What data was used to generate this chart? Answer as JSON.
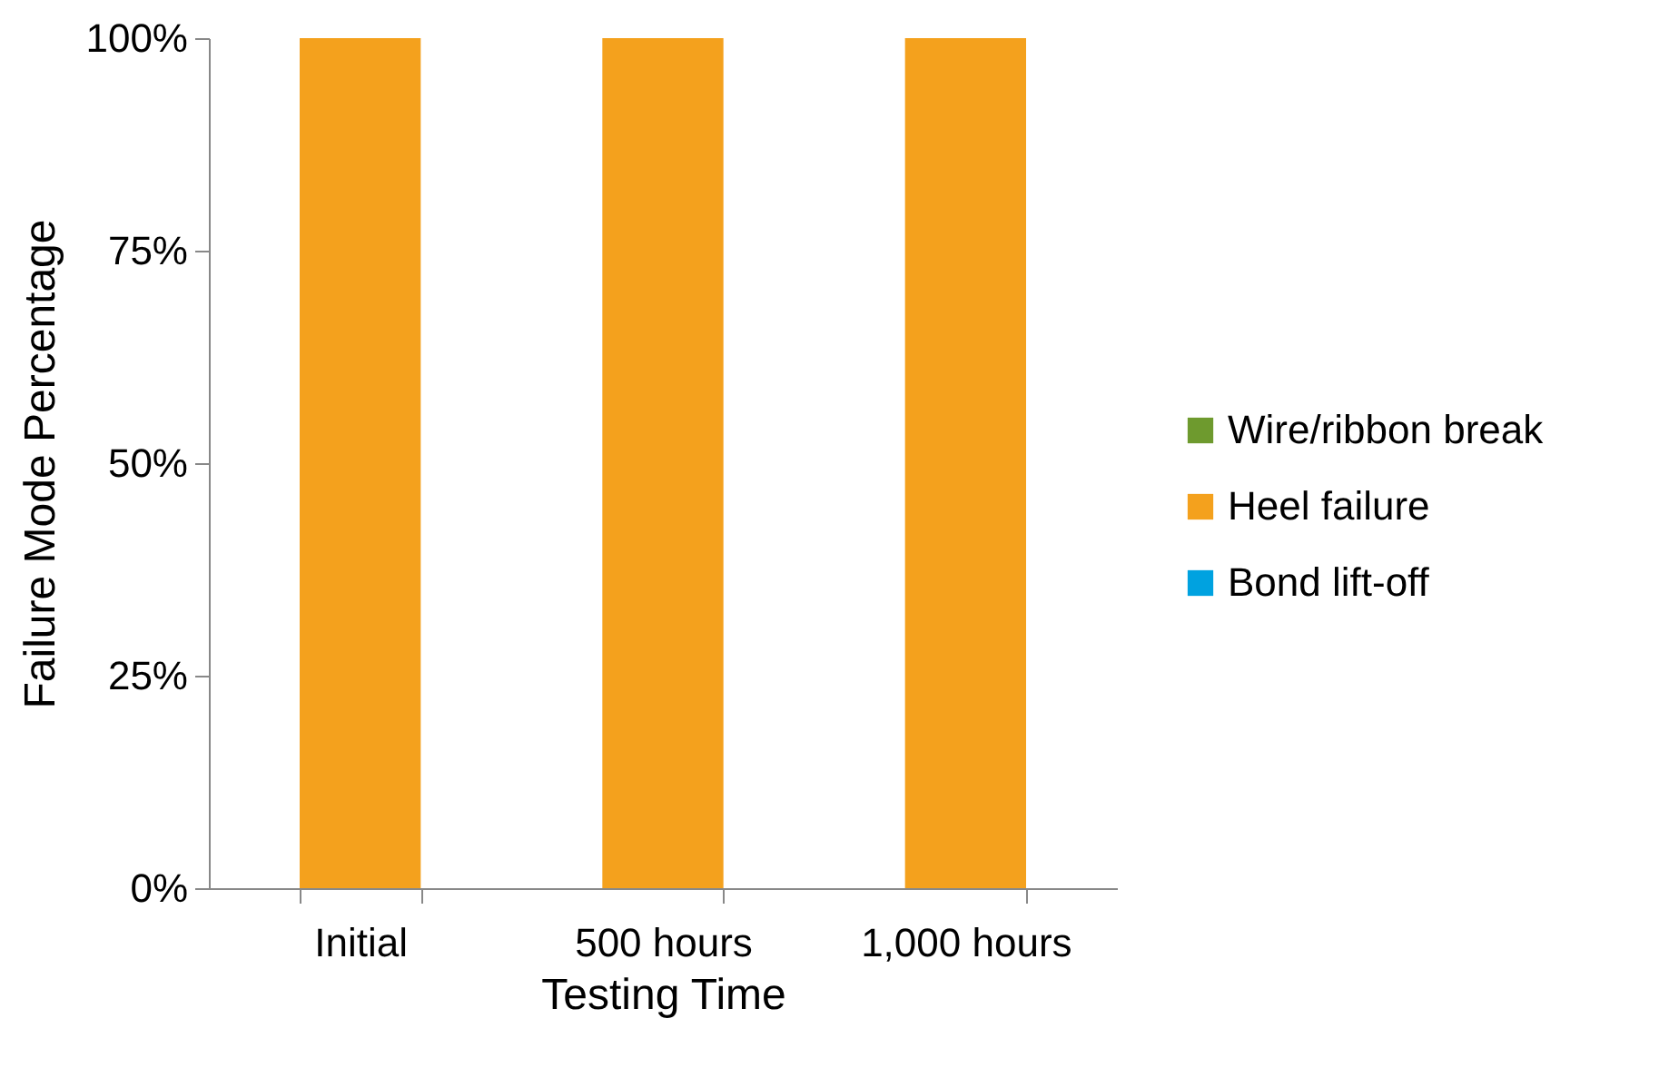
{
  "chart_data": {
    "type": "bar",
    "stacked": true,
    "xlabel": "Testing Time",
    "ylabel": "Failure Mode Percentage",
    "categories": [
      "Initial",
      "500 hours",
      "1,000 hours"
    ],
    "series": [
      {
        "name": "Bond lift-off",
        "color": "#00a2e0",
        "values": [
          0,
          0,
          0
        ]
      },
      {
        "name": "Heel failure",
        "color": "#f4a11d",
        "values": [
          100,
          100,
          100
        ]
      },
      {
        "name": "Wire/ribbon break",
        "color": "#6e9a2e",
        "values": [
          0,
          0,
          0
        ]
      }
    ],
    "ylim": [
      0,
      100
    ],
    "yticks": [
      {
        "value": 0,
        "label": "0%"
      },
      {
        "value": 25,
        "label": "25%"
      },
      {
        "value": 50,
        "label": "50%"
      },
      {
        "value": 75,
        "label": "75%"
      },
      {
        "value": 100,
        "label": "100%"
      }
    ],
    "grid": false,
    "legend": "right"
  }
}
